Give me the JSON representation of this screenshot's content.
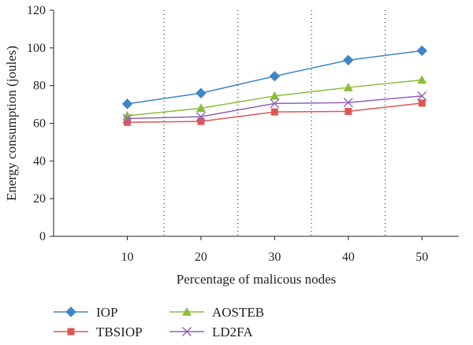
{
  "chart_data": {
    "type": "line",
    "title": "",
    "xlabel": "Percentage of malicous nodes",
    "ylabel": "Energy consumption (joules)",
    "categories": [
      10,
      20,
      30,
      40,
      50
    ],
    "xlim": [
      0,
      55
    ],
    "ylim": [
      0,
      120
    ],
    "yticks": [
      0,
      20,
      40,
      60,
      80,
      100,
      120
    ],
    "vertical_dotted_lines_at": [
      15,
      25,
      35,
      45
    ],
    "legend_position": "bottom",
    "series": [
      {
        "name": "IOP",
        "color": "#3d85c6",
        "marker": "diamond",
        "values": [
          70.3,
          76,
          85,
          93.5,
          98.5
        ]
      },
      {
        "name": "TBSIOP",
        "color": "#e05555",
        "marker": "square",
        "values": [
          60.5,
          61,
          66,
          66.3,
          70.7
        ]
      },
      {
        "name": "AOSTEB",
        "color": "#8bbd3a",
        "marker": "triangle",
        "values": [
          64,
          68,
          74.5,
          79,
          83
        ]
      },
      {
        "name": "LD2FA",
        "color": "#8f63b5",
        "marker": "x",
        "values": [
          62.5,
          63.5,
          70.5,
          71,
          74.5
        ]
      }
    ]
  }
}
